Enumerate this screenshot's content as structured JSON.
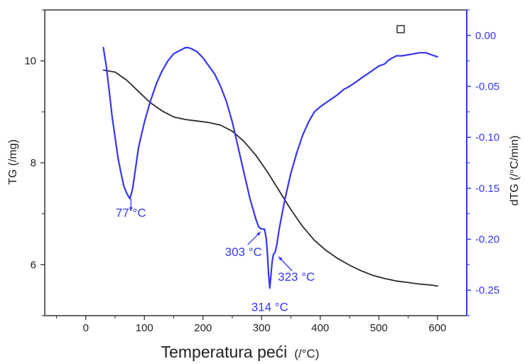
{
  "chart_data": {
    "type": "line",
    "xlabel": "Temperatura peći",
    "xlabel_unit": "(/°C)",
    "ylabel_left": "TG (/mg)",
    "ylabel_right": "dTG (/°C/min)",
    "xlim": [
      -70,
      650
    ],
    "ylim_left": [
      5.0,
      11.0
    ],
    "ylim_right": [
      -0.275,
      0.025
    ],
    "x_ticks": [
      "0",
      "100",
      "200",
      "300",
      "400",
      "500",
      "600"
    ],
    "y_left_ticks": [
      "6",
      "8",
      "10"
    ],
    "y_right_ticks": [
      "0.00",
      "-0.05",
      "-0.10",
      "-0.15",
      "-0.20",
      "-0.25"
    ],
    "series": [
      {
        "axis": "left",
        "color": "#2b2b2b",
        "x": [
          30,
          50,
          70,
          90,
          110,
          130,
          150,
          170,
          190,
          210,
          230,
          250,
          270,
          290,
          310,
          330,
          350,
          370,
          390,
          410,
          430,
          450,
          470,
          490,
          510,
          530,
          550,
          570,
          590,
          600
        ],
        "y": [
          9.82,
          9.78,
          9.62,
          9.4,
          9.18,
          9.02,
          8.9,
          8.85,
          8.82,
          8.79,
          8.74,
          8.62,
          8.42,
          8.15,
          7.82,
          7.45,
          7.08,
          6.75,
          6.48,
          6.28,
          6.12,
          5.99,
          5.88,
          5.79,
          5.73,
          5.68,
          5.65,
          5.62,
          5.6,
          5.58
        ]
      },
      {
        "axis": "right",
        "color": "#3636f0",
        "x": [
          30,
          35,
          40,
          45,
          50,
          55,
          60,
          65,
          70,
          75,
          77,
          80,
          85,
          90,
          100,
          110,
          120,
          130,
          140,
          150,
          160,
          170,
          175,
          180,
          190,
          200,
          210,
          220,
          230,
          240,
          250,
          260,
          270,
          280,
          290,
          295,
          300,
          303,
          305,
          308,
          310,
          312,
          314,
          316,
          318,
          320,
          323,
          326,
          330,
          335,
          340,
          350,
          360,
          370,
          380,
          390,
          400,
          410,
          420,
          430,
          440,
          450,
          460,
          470,
          480,
          490,
          500,
          510,
          515,
          520,
          530,
          540,
          550,
          560,
          570,
          580,
          590,
          600
        ],
        "y": [
          -0.012,
          -0.03,
          -0.055,
          -0.08,
          -0.1,
          -0.12,
          -0.135,
          -0.148,
          -0.155,
          -0.16,
          -0.157,
          -0.15,
          -0.13,
          -0.11,
          -0.085,
          -0.065,
          -0.048,
          -0.035,
          -0.025,
          -0.018,
          -0.015,
          -0.012,
          -0.012,
          -0.013,
          -0.016,
          -0.022,
          -0.03,
          -0.038,
          -0.05,
          -0.065,
          -0.085,
          -0.11,
          -0.135,
          -0.16,
          -0.18,
          -0.188,
          -0.19,
          -0.19,
          -0.19,
          -0.2,
          -0.215,
          -0.235,
          -0.248,
          -0.235,
          -0.222,
          -0.215,
          -0.213,
          -0.205,
          -0.19,
          -0.175,
          -0.16,
          -0.135,
          -0.115,
          -0.098,
          -0.085,
          -0.075,
          -0.07,
          -0.066,
          -0.062,
          -0.058,
          -0.053,
          -0.05,
          -0.046,
          -0.042,
          -0.038,
          -0.034,
          -0.03,
          -0.028,
          -0.025,
          -0.023,
          -0.02,
          -0.02,
          -0.019,
          -0.018,
          -0.017,
          -0.017,
          -0.019,
          -0.021
        ]
      }
    ],
    "annotations": [
      {
        "text": "77 °C",
        "x": 77,
        "y": -0.157,
        "axis": "right"
      },
      {
        "text": "303 °C",
        "x": 303,
        "y": -0.19,
        "axis": "right"
      },
      {
        "text": "314 °C",
        "x": 314,
        "y": -0.248,
        "axis": "right"
      },
      {
        "text": "323 °C",
        "x": 323,
        "y": -0.213,
        "axis": "right"
      }
    ],
    "legend": "none",
    "grid": false
  },
  "colors": {
    "tg_line": "#2b2b2b",
    "dtg_line": "#3636f0",
    "right_axis": "#3636f0",
    "frame": "#333333"
  }
}
